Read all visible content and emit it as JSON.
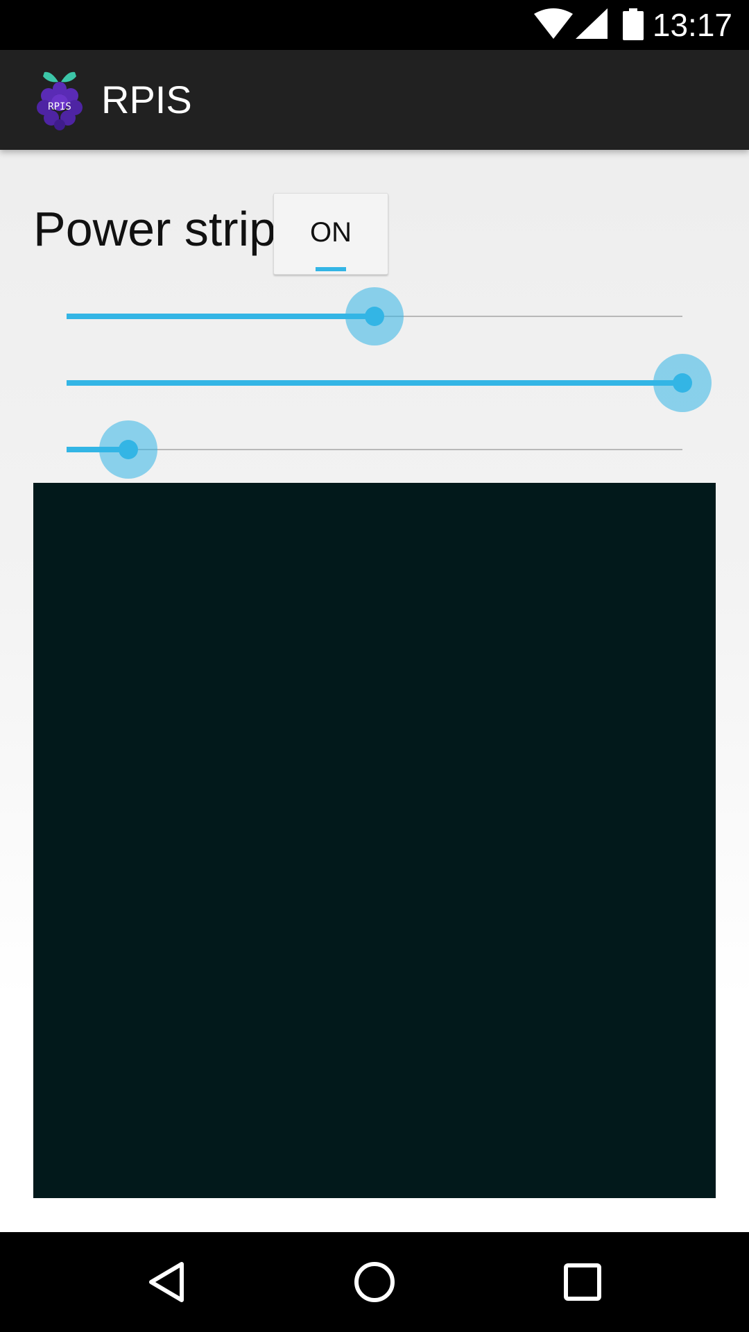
{
  "status_bar": {
    "time": "13:17",
    "icons": [
      "wifi-icon",
      "signal-icon",
      "battery-icon"
    ]
  },
  "app_bar": {
    "title": "RPIS",
    "logo_text": "RPIS",
    "logo_icon": "raspberry-pi-logo"
  },
  "power": {
    "label": "Power strip",
    "toggle_label": "ON",
    "accent": "#33b5e5"
  },
  "sliders": [
    {
      "name": "slider-1",
      "value_fraction": 0.5
    },
    {
      "name": "slider-2",
      "value_fraction": 1.0
    },
    {
      "name": "slider-3",
      "value_fraction": 0.1
    }
  ],
  "preview": {
    "color": "#02191b"
  },
  "nav_bar": {
    "buttons": [
      "back-icon",
      "home-icon",
      "recents-icon"
    ]
  }
}
